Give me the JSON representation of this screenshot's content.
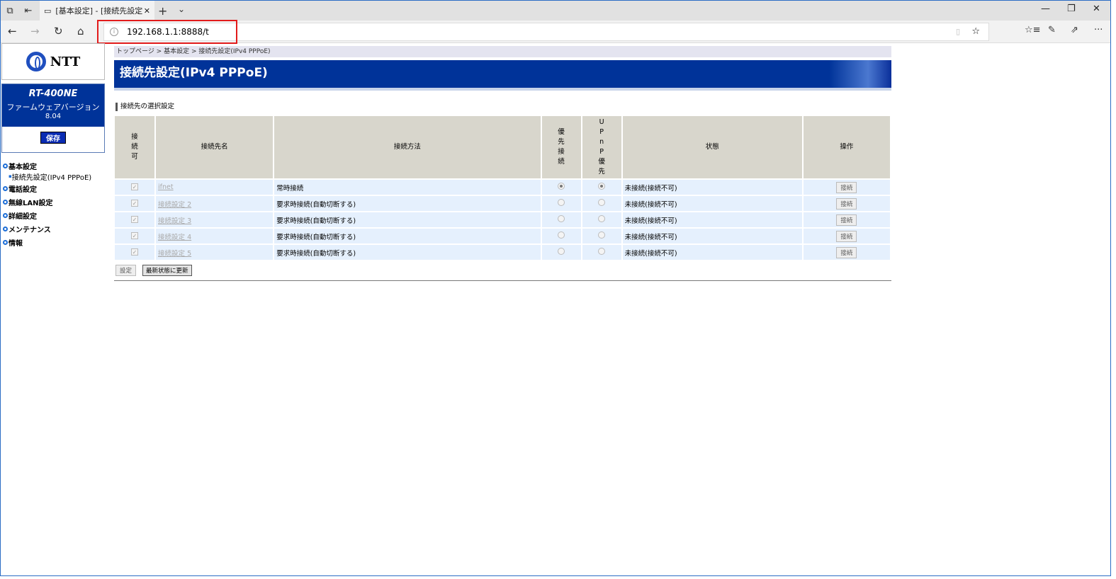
{
  "browser": {
    "tab_title": "[基本設定] - [接続先設定",
    "url": "192.168.1.1:8888/t"
  },
  "sidebar": {
    "logo": "NTT",
    "model": "RT-400NE",
    "fw_label": "ファームウェアバージョン",
    "fw_version": "8.04",
    "save": "保存",
    "items": [
      {
        "label": "基本設定"
      },
      {
        "label": "接続先設定(IPv4 PPPoE)",
        "sub": true
      },
      {
        "label": "電話設定"
      },
      {
        "label": "無線LAN設定"
      },
      {
        "label": "詳細設定"
      },
      {
        "label": "メンテナンス"
      },
      {
        "label": "情報"
      }
    ]
  },
  "main": {
    "breadcrumb": "トップページ > 基本設定 > 接続先設定(IPv4 PPPoE)",
    "title": "接続先設定(IPv4 PPPoE)",
    "section": "接続先の選択設定",
    "headers": [
      "接\n続\n可",
      "接続先名",
      "接続方法",
      "優\n先\n接\n続",
      "U\nP\nn\nP\n優\n先",
      "状態",
      "操作"
    ],
    "rows": [
      {
        "enabled": true,
        "name": "ifnet",
        "method": "常時接続",
        "priority": true,
        "upnp": true,
        "status": "未接続(接続不可)",
        "action": "接続"
      },
      {
        "enabled": true,
        "name": "接続設定 2",
        "method": "要求時接続(自動切断する)",
        "priority": false,
        "upnp": false,
        "status": "未接続(接続不可)",
        "action": "接続"
      },
      {
        "enabled": true,
        "name": "接続設定 3",
        "method": "要求時接続(自動切断する)",
        "priority": false,
        "upnp": false,
        "status": "未接続(接続不可)",
        "action": "接続"
      },
      {
        "enabled": true,
        "name": "接続設定 4",
        "method": "要求時接続(自動切断する)",
        "priority": false,
        "upnp": false,
        "status": "未接続(接続不可)",
        "action": "接続"
      },
      {
        "enabled": true,
        "name": "接続設定 5",
        "method": "要求時接続(自動切断する)",
        "priority": false,
        "upnp": false,
        "status": "未接続(接続不可)",
        "action": "接続"
      }
    ],
    "set_button": "設定",
    "refresh_button": "最新状態に更新"
  }
}
